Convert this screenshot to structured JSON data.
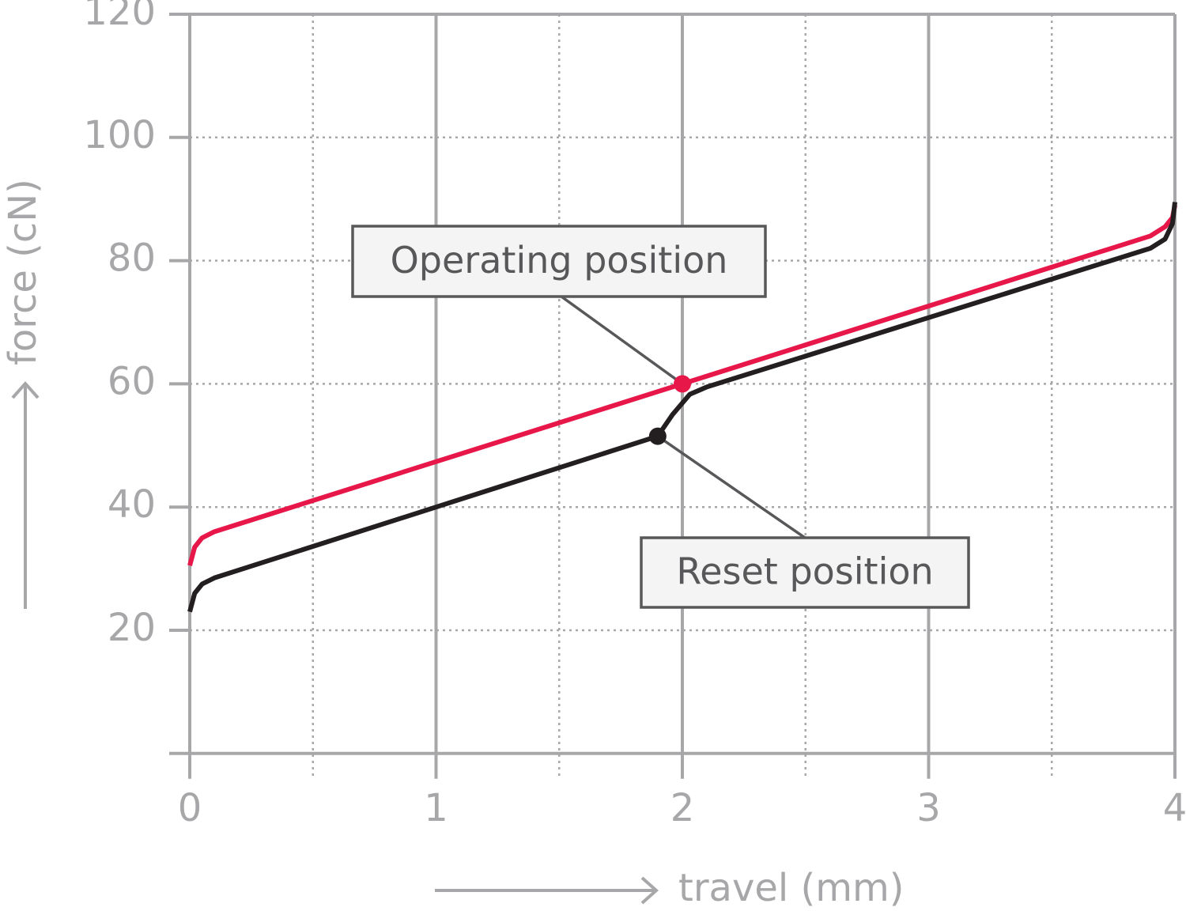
{
  "chart_data": {
    "type": "line",
    "x_label": "travel (mm)",
    "y_label": "force (cN)",
    "xlim": [
      0,
      4
    ],
    "xticks": [
      0,
      1,
      2,
      3,
      4
    ],
    "ylim": [
      0,
      120
    ],
    "yticks": [
      20,
      40,
      60,
      80,
      100,
      120
    ],
    "grid": true,
    "series": [
      {
        "name": "Operating",
        "color": "#e8174a",
        "x": [
          0,
          0.02,
          0.05,
          0.1,
          2,
          3.9,
          3.96,
          3.99,
          4
        ],
        "values": [
          30.5,
          33.5,
          35,
          36,
          60,
          84,
          85.5,
          87,
          89
        ]
      },
      {
        "name": "Reset",
        "color": "#231f20",
        "x": [
          0,
          0.02,
          0.05,
          0.1,
          1.9,
          1.96,
          2.03,
          2.1,
          3.9,
          3.96,
          3.99,
          4
        ],
        "values": [
          23,
          26,
          27.5,
          28.5,
          51.5,
          55,
          58.3,
          59.5,
          82,
          83.5,
          86,
          89.5
        ]
      }
    ],
    "annotations": [
      {
        "text": "Operating position",
        "x": 2,
        "y": 60
      },
      {
        "text": "Reset position",
        "x": 1.9,
        "y": 51.5
      }
    ]
  }
}
